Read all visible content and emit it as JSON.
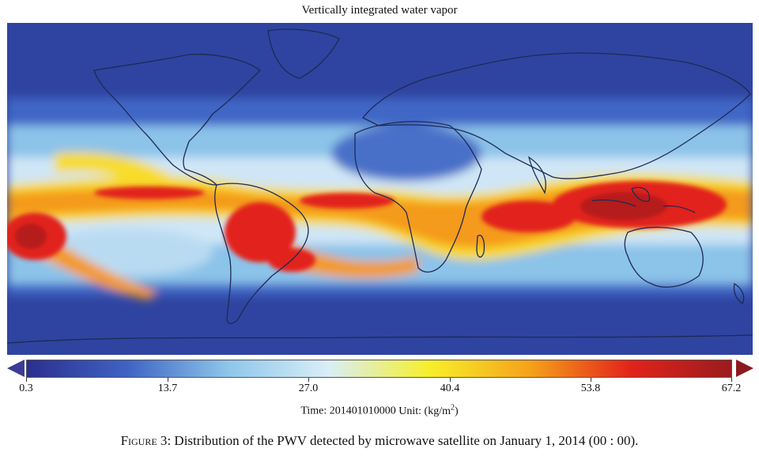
{
  "title": "Vertically integrated water vapor",
  "colorbar": {
    "ticks": [
      "0.3",
      "13.7",
      "27.0",
      "40.4",
      "53.8",
      "67.2"
    ],
    "time_label": "Time: 201401010000",
    "unit_label": "Unit: (kg/m",
    "unit_exp": "2",
    "unit_close": ")",
    "colors": [
      "#2b2f8e",
      "#3f63c4",
      "#8ec6ea",
      "#d9eef8",
      "#f7ef2a",
      "#f6a21a",
      "#e2231a",
      "#9b1b1f"
    ]
  },
  "caption": {
    "label": "Figure 3",
    "text": ": Distribution of the PWV detected by microwave satellite on January 1, 2014 (00 : 00)."
  },
  "map": {
    "colors": {
      "dry": "#2b3d9b",
      "low": "#3f63c4",
      "mid": "#8fc4ea",
      "pale": "#dcebf7",
      "yellow": "#f8e02a",
      "orange": "#f69a1a",
      "red": "#e2231a",
      "dark_red": "#b51b1f",
      "coast": "#1e2a50"
    }
  }
}
